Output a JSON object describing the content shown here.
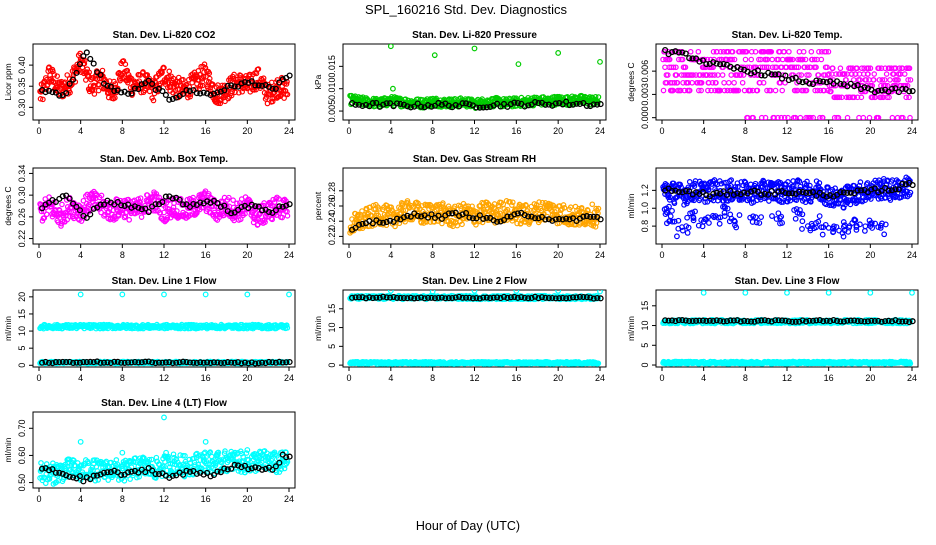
{
  "figure": {
    "title": "SPL_160216  Std. Dev. Diagnostics",
    "xlabel": "Hour of Day (UTC)"
  },
  "colors": {
    "red": "#ff0000",
    "green": "#00cc00",
    "magenta": "#ff00ff",
    "orange": "#ffa500",
    "blue": "#0000ff",
    "cyan": "#00ffff",
    "hourly_marker": "#000000"
  },
  "chart_data": [
    {
      "type": "scatter",
      "title": "Stan. Dev. Li-820 CO2",
      "ylabel": "Licor ppm",
      "xlim": [
        0,
        24
      ],
      "ylim": [
        0.27,
        0.45
      ],
      "xticks": [
        "0",
        "4",
        "8",
        "12",
        "16",
        "20",
        "24"
      ],
      "yticks": [
        "0.30",
        "0.35",
        "0.40"
      ],
      "color": "red",
      "description_of_series": "dense points every ~2 min, range about 0.29–0.45; black circles are hourly values 0.30–0.44",
      "series": [
        {
          "x": [
            0.3,
            1,
            2,
            3,
            4,
            5,
            6,
            7,
            8,
            9,
            10,
            11,
            12,
            13,
            14,
            15,
            16,
            17,
            18,
            19,
            20,
            21,
            22,
            23,
            23.8
          ],
          "y": [
            0.33,
            0.38,
            0.34,
            0.36,
            0.41,
            0.35,
            0.37,
            0.33,
            0.39,
            0.35,
            0.36,
            0.34,
            0.38,
            0.35,
            0.34,
            0.36,
            0.38,
            0.33,
            0.34,
            0.36,
            0.35,
            0.37,
            0.33,
            0.35,
            0.34
          ]
        }
      ],
      "hourly": {
        "x": [
          0.5,
          2.5,
          4.5,
          6.5,
          8.5,
          10.5,
          12.5,
          14.5,
          16.5,
          18.5,
          20.5,
          22.5,
          23.5
        ],
        "y": [
          0.34,
          0.33,
          0.43,
          0.35,
          0.33,
          0.36,
          0.32,
          0.34,
          0.33,
          0.35,
          0.36,
          0.34,
          0.37
        ]
      }
    },
    {
      "type": "scatter",
      "title": "Stan. Dev. Li-820 Pressure",
      "ylabel": "kPa",
      "xlim": [
        0,
        24
      ],
      "ylim": [
        0.003,
        0.02
      ],
      "xticks": [
        "0",
        "4",
        "8",
        "12",
        "16",
        "20",
        "24"
      ],
      "yticks": [
        "0.005",
        "0.010",
        "0.015"
      ],
      "color": "green",
      "series": [
        {
          "x": [
            0.3,
            1,
            2,
            3,
            4,
            5,
            6,
            7,
            8,
            9,
            10,
            11,
            12,
            13,
            14,
            15,
            16,
            17,
            18,
            19,
            20,
            21,
            22,
            23,
            23.8
          ],
          "y": [
            0.0075,
            0.0072,
            0.007,
            0.0068,
            0.0073,
            0.007,
            0.0069,
            0.0067,
            0.0071,
            0.0069,
            0.0068,
            0.007,
            0.0066,
            0.0069,
            0.007,
            0.0068,
            0.007,
            0.0071,
            0.0073,
            0.0072,
            0.0074,
            0.0073,
            0.0075,
            0.0074,
            0.0072
          ]
        },
        {
          "x": [
            4,
            4.2,
            8.2,
            12,
            16.2,
            20,
            24
          ],
          "y": [
            0.0195,
            0.01,
            0.0175,
            0.019,
            0.0155,
            0.018,
            0.016
          ]
        }
      ],
      "hourly": {
        "x": [
          0.5,
          2.5,
          4.5,
          6.5,
          8.5,
          10.5,
          12.5,
          14.5,
          16.5,
          18.5,
          20.5,
          22.5,
          23.5
        ],
        "y": [
          0.0065,
          0.0064,
          0.0063,
          0.0062,
          0.0064,
          0.0063,
          0.0062,
          0.0064,
          0.0065,
          0.0066,
          0.0067,
          0.0066,
          0.0064
        ]
      }
    },
    {
      "type": "scatter",
      "title": "Stan. Dev. Li-820 Temp.",
      "ylabel": "degrees C",
      "xlim": [
        0,
        24
      ],
      "ylim": [
        -0.0003,
        0.0095
      ],
      "xticks": [
        "0",
        "4",
        "8",
        "12",
        "16",
        "20",
        "24"
      ],
      "yticks": [
        "0.000",
        "0.003",
        "0.006"
      ],
      "color": "magenta",
      "series": [
        {
          "x": [
            0.3,
            1,
            2,
            3,
            4,
            5,
            6,
            7,
            8,
            9,
            10,
            11,
            12,
            13,
            14,
            15,
            16,
            17,
            18,
            19,
            20,
            21,
            22,
            23,
            23.8
          ],
          "y": [
            0.008,
            0.0078,
            0.0072,
            0.007,
            0.0075,
            0.0065,
            0.006,
            0.0058,
            0.0062,
            0.0055,
            0.0057,
            0.0053,
            0.0055,
            0.005,
            0.0052,
            0.0048,
            0.0046,
            0.0045,
            0.0043,
            0.004,
            0.0038,
            0.004,
            0.0038,
            0.0036,
            0.0035
          ]
        }
      ],
      "hourly": {
        "x": [
          0.5,
          2.5,
          4.5,
          6.5,
          8.5,
          10.5,
          12.5,
          14.5,
          16.5,
          18.5,
          20.5,
          22.5,
          23.5
        ],
        "y": [
          0.0085,
          0.008,
          0.007,
          0.0065,
          0.006,
          0.0055,
          0.005,
          0.0045,
          0.0045,
          0.004,
          0.0035,
          0.0035,
          0.0035
        ]
      }
    },
    {
      "type": "scatter",
      "title": "Stan. Dev. Amb. Box Temp.",
      "ylabel": "degrees C",
      "xlim": [
        0,
        24
      ],
      "ylim": [
        0.21,
        0.35
      ],
      "xticks": [
        "0",
        "4",
        "8",
        "12",
        "16",
        "20",
        "24"
      ],
      "yticks": [
        "0.22",
        "0.26",
        "0.30",
        "0.34"
      ],
      "color": "magenta",
      "series": [
        {
          "x": [
            0.3,
            1,
            2,
            3,
            4,
            5,
            6,
            7,
            8,
            9,
            10,
            11,
            12,
            13,
            14,
            15,
            16,
            17,
            18,
            19,
            20,
            21,
            22,
            23,
            23.8
          ],
          "y": [
            0.27,
            0.28,
            0.26,
            0.28,
            0.27,
            0.29,
            0.28,
            0.27,
            0.28,
            0.27,
            0.28,
            0.29,
            0.27,
            0.28,
            0.27,
            0.28,
            0.29,
            0.27,
            0.28,
            0.27,
            0.28,
            0.26,
            0.27,
            0.28,
            0.27
          ]
        }
      ],
      "hourly": {
        "x": [
          0.5,
          2.5,
          4.5,
          6.5,
          8.5,
          10.5,
          12.5,
          14.5,
          16.5,
          18.5,
          20.5,
          22.5,
          23.5
        ],
        "y": [
          0.28,
          0.3,
          0.26,
          0.29,
          0.28,
          0.27,
          0.3,
          0.28,
          0.29,
          0.27,
          0.28,
          0.27,
          0.28
        ]
      }
    },
    {
      "type": "scatter",
      "title": "Stan. Dev. Gas Stream RH",
      "ylabel": "percent",
      "xlim": [
        0,
        24
      ],
      "ylim": [
        0.21,
        0.31
      ],
      "xticks": [
        "0",
        "4",
        "8",
        "12",
        "16",
        "20",
        "24"
      ],
      "yticks": [
        "0.22",
        "0.24",
        "0.26",
        "0.28"
      ],
      "color": "orange",
      "series": [
        {
          "x": [
            0.3,
            1,
            2,
            3,
            4,
            5,
            6,
            7,
            8,
            9,
            10,
            11,
            12,
            13,
            14,
            15,
            16,
            17,
            18,
            19,
            20,
            21,
            22,
            23,
            23.8
          ],
          "y": [
            0.235,
            0.24,
            0.245,
            0.25,
            0.245,
            0.25,
            0.255,
            0.248,
            0.252,
            0.25,
            0.245,
            0.25,
            0.248,
            0.252,
            0.25,
            0.255,
            0.25,
            0.248,
            0.252,
            0.255,
            0.25,
            0.248,
            0.245,
            0.25,
            0.245
          ]
        }
      ],
      "hourly": {
        "x": [
          0.5,
          2.5,
          4.5,
          6.5,
          8.5,
          10.5,
          12.5,
          14.5,
          16.5,
          18.5,
          20.5,
          22.5,
          23.5
        ],
        "y": [
          0.23,
          0.24,
          0.24,
          0.25,
          0.245,
          0.25,
          0.245,
          0.24,
          0.25,
          0.245,
          0.24,
          0.245,
          0.245
        ]
      }
    },
    {
      "type": "scatter",
      "title": "Stan. Dev. Sample Flow",
      "ylabel": "ml/min",
      "xlim": [
        0,
        24
      ],
      "ylim": [
        0.6,
        1.45
      ],
      "xticks": [
        "0",
        "4",
        "8",
        "12",
        "16",
        "20",
        "24"
      ],
      "yticks": [
        "0.8",
        "1.0",
        "1.2"
      ],
      "color": "blue",
      "series": [
        {
          "x": [
            0.3,
            1,
            2,
            3,
            4,
            5,
            6,
            7,
            8,
            9,
            10,
            11,
            12,
            13,
            14,
            15,
            16,
            17,
            18,
            19,
            20,
            21,
            22,
            23,
            23.8
          ],
          "y": [
            1.2,
            1.18,
            1.15,
            1.2,
            1.18,
            1.2,
            1.19,
            1.2,
            1.18,
            1.17,
            1.2,
            1.19,
            1.18,
            1.2,
            1.18,
            1.2,
            1.15,
            1.1,
            1.15,
            1.18,
            1.2,
            1.22,
            1.2,
            1.22,
            1.25
          ]
        },
        {
          "x": [
            0.5,
            1,
            2,
            3,
            4,
            5,
            6,
            7,
            9,
            11,
            13,
            14,
            15,
            16,
            17,
            18,
            19,
            20,
            21
          ],
          "y": [
            0.95,
            0.85,
            0.75,
            0.9,
            0.85,
            0.9,
            0.95,
            0.85,
            0.9,
            0.88,
            0.95,
            0.8,
            0.85,
            0.78,
            0.75,
            0.8,
            0.82,
            0.8,
            0.78
          ]
        }
      ],
      "hourly": {
        "x": [
          0.5,
          2.5,
          4.5,
          6.5,
          8.5,
          10.5,
          12.5,
          14.5,
          16.5,
          18.5,
          20.5,
          22.5,
          23.5
        ],
        "y": [
          1.2,
          1.18,
          1.15,
          1.17,
          1.18,
          1.17,
          1.18,
          1.16,
          1.15,
          1.17,
          1.2,
          1.22,
          1.27
        ]
      }
    },
    {
      "type": "scatter",
      "title": "Stan. Dev. Line 1 Flow",
      "ylabel": "ml/min",
      "xlim": [
        0,
        24
      ],
      "ylim": [
        -0.5,
        22
      ],
      "xticks": [
        "0",
        "4",
        "8",
        "12",
        "16",
        "20",
        "24"
      ],
      "yticks": [
        "0",
        "5",
        "10",
        "15",
        "20"
      ],
      "color": "cyan",
      "bands": [
        {
          "y": 11.3,
          "spread": 0.6
        },
        {
          "y": 0.8,
          "spread": 0.3
        }
      ],
      "outliers": {
        "x": [
          4,
          8,
          12,
          16,
          20,
          24
        ],
        "y": [
          20.7,
          20.7,
          20.7,
          20.7,
          20.7,
          20.7
        ]
      },
      "hourly": {
        "x": [
          0.5,
          2.5,
          4.5,
          6.5,
          8.5,
          10.5,
          12.5,
          14.5,
          16.5,
          18.5,
          20.5,
          22.5,
          23.5
        ],
        "y": [
          0.8,
          0.9,
          0.9,
          0.9,
          0.8,
          0.9,
          0.8,
          0.9,
          0.9,
          0.8,
          0.7,
          0.8,
          0.9
        ]
      }
    },
    {
      "type": "scatter",
      "title": "Stan. Dev. Line 2 Flow",
      "ylabel": "ml/min",
      "xlim": [
        0,
        24
      ],
      "ylim": [
        -0.5,
        20
      ],
      "xticks": [
        "0",
        "4",
        "8",
        "12",
        "16",
        "20",
        "24"
      ],
      "yticks": [
        "0",
        "5",
        "10",
        "15"
      ],
      "color": "cyan",
      "bands": [
        {
          "y": 18.0,
          "spread": 0.5
        },
        {
          "y": 0.6,
          "spread": 0.3
        }
      ],
      "outliers": {
        "x": [
          4,
          8,
          12,
          16,
          20,
          24
        ],
        "y": [
          19.8,
          19.6,
          19.8,
          19.8,
          19.8,
          19.6
        ]
      },
      "hourly": {
        "x": [
          0.5,
          2.5,
          4.5,
          6.5,
          8.5,
          10.5,
          12.5,
          14.5,
          16.5,
          18.5,
          20.5,
          22.5,
          23.5
        ],
        "y": [
          18.0,
          18.0,
          18.1,
          17.9,
          18.0,
          18.0,
          17.9,
          18.0,
          18.0,
          18.0,
          17.9,
          18.0,
          17.8
        ]
      }
    },
    {
      "type": "scatter",
      "title": "Stan. Dev. Line 3 Flow",
      "ylabel": "ml/min",
      "xlim": [
        0,
        24
      ],
      "ylim": [
        -0.5,
        19
      ],
      "xticks": [
        "0",
        "4",
        "8",
        "12",
        "16",
        "20",
        "24"
      ],
      "yticks": [
        "0",
        "5",
        "10",
        "15"
      ],
      "color": "cyan",
      "bands": [
        {
          "y": 11.0,
          "spread": 0.5
        },
        {
          "y": 0.6,
          "spread": 0.3
        }
      ],
      "outliers": {
        "x": [
          4,
          8,
          12,
          16,
          20,
          24
        ],
        "y": [
          18.3,
          18.3,
          18.3,
          18.3,
          18.3,
          18.3
        ]
      },
      "hourly": {
        "x": [
          0.5,
          2.5,
          4.5,
          6.5,
          8.5,
          10.5,
          12.5,
          14.5,
          16.5,
          18.5,
          20.5,
          22.5,
          23.5
        ],
        "y": [
          11.2,
          11.2,
          11.1,
          11.2,
          11.1,
          11.2,
          11.1,
          11.2,
          11.2,
          11.1,
          11.1,
          11.2,
          11.0
        ]
      }
    },
    {
      "type": "scatter",
      "title": "Stan. Dev. Line 4 (LT) Flow",
      "ylabel": "ml/min",
      "xlim": [
        0,
        24
      ],
      "ylim": [
        0.48,
        0.76
      ],
      "xticks": [
        "0",
        "4",
        "8",
        "12",
        "16",
        "20",
        "24"
      ],
      "yticks": [
        "0.50",
        "0.60",
        "0.70"
      ],
      "color": "cyan",
      "series": [
        {
          "x": [
            0.3,
            1,
            2,
            3,
            4,
            5,
            6,
            7,
            8,
            9,
            10,
            11,
            12,
            13,
            14,
            15,
            16,
            17,
            18,
            19,
            20,
            21,
            22,
            23,
            23.8
          ],
          "y": [
            0.54,
            0.53,
            0.54,
            0.55,
            0.54,
            0.55,
            0.54,
            0.55,
            0.54,
            0.55,
            0.56,
            0.55,
            0.56,
            0.57,
            0.56,
            0.57,
            0.58,
            0.57,
            0.58,
            0.58,
            0.57,
            0.58,
            0.58,
            0.57,
            0.58
          ]
        },
        {
          "x": [
            4,
            8,
            12,
            12.2,
            16,
            20
          ],
          "y": [
            0.65,
            0.61,
            0.74,
            0.61,
            0.65,
            0.62
          ]
        }
      ],
      "hourly": {
        "x": [
          0.5,
          2.5,
          4.5,
          6.5,
          8.5,
          10.5,
          12.5,
          14.5,
          16.5,
          18.5,
          20.5,
          22.5,
          23.5
        ],
        "y": [
          0.55,
          0.53,
          0.51,
          0.54,
          0.53,
          0.55,
          0.52,
          0.54,
          0.53,
          0.56,
          0.55,
          0.55,
          0.6
        ]
      }
    }
  ]
}
